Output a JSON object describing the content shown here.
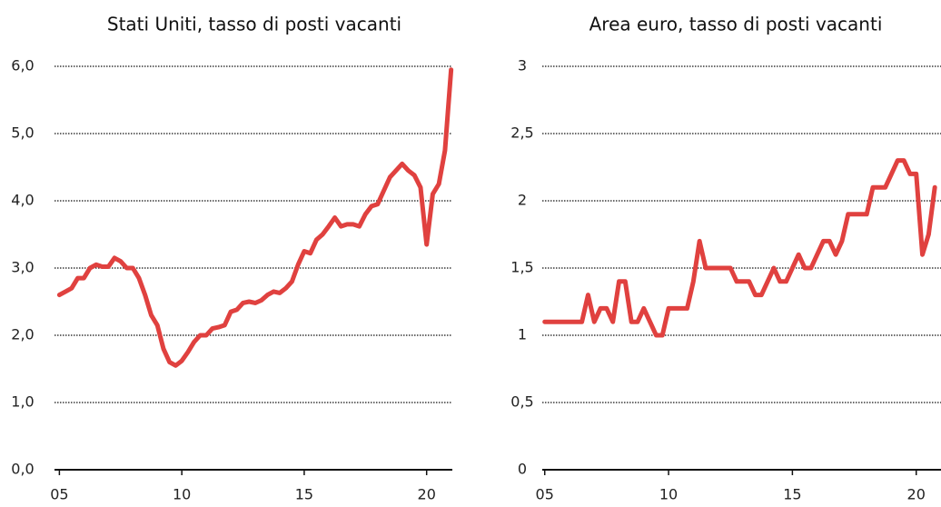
{
  "chart_data": [
    {
      "type": "line",
      "title": "Stati Uniti, tasso di posti vacanti",
      "x": [
        2005,
        2005.25,
        2005.5,
        2005.75,
        2006,
        2006.25,
        2006.5,
        2006.75,
        2007,
        2007.25,
        2007.5,
        2007.75,
        2008,
        2008.25,
        2008.5,
        2008.75,
        2009,
        2009.25,
        2009.5,
        2009.75,
        2010,
        2010.25,
        2010.5,
        2010.75,
        2011,
        2011.25,
        2011.5,
        2011.75,
        2012,
        2012.25,
        2012.5,
        2012.75,
        2013,
        2013.25,
        2013.5,
        2013.75,
        2014,
        2014.25,
        2014.5,
        2014.75,
        2015,
        2015.25,
        2015.5,
        2015.75,
        2016,
        2016.25,
        2016.5,
        2016.75,
        2017,
        2017.25,
        2017.5,
        2017.75,
        2018,
        2018.25,
        2018.5,
        2018.75,
        2019,
        2019.25,
        2019.5,
        2019.75,
        2020,
        2020.25,
        2020.5,
        2020.75,
        2021
      ],
      "series": [
        {
          "name": "Stati Uniti",
          "color": "#e0413f",
          "values": [
            2.6,
            2.65,
            2.7,
            2.85,
            2.85,
            3.0,
            3.05,
            3.02,
            3.02,
            3.15,
            3.1,
            3.0,
            3.0,
            2.85,
            2.6,
            2.3,
            2.15,
            1.8,
            1.6,
            1.55,
            1.62,
            1.75,
            1.9,
            2.0,
            2.0,
            2.1,
            2.12,
            2.15,
            2.35,
            2.38,
            2.48,
            2.5,
            2.48,
            2.52,
            2.6,
            2.65,
            2.63,
            2.7,
            2.8,
            3.05,
            3.25,
            3.22,
            3.42,
            3.5,
            3.62,
            3.75,
            3.62,
            3.65,
            3.65,
            3.62,
            3.8,
            3.92,
            3.95,
            4.15,
            4.35,
            4.45,
            4.55,
            4.45,
            4.38,
            4.2,
            3.35,
            4.1,
            4.25,
            4.75,
            5.95
          ]
        }
      ],
      "xlim": [
        2004.8,
        2021.05
      ],
      "xticks": [
        {
          "value": 2005,
          "label": "05"
        },
        {
          "value": 2010,
          "label": "10"
        },
        {
          "value": 2015,
          "label": "15"
        },
        {
          "value": 2020,
          "label": "20"
        }
      ],
      "ylim": [
        0,
        6
      ],
      "yticks": [
        {
          "value": 0,
          "label": "0,0"
        },
        {
          "value": 1,
          "label": "1,0"
        },
        {
          "value": 2,
          "label": "2,0"
        },
        {
          "value": 3,
          "label": "3,0"
        },
        {
          "value": 4,
          "label": "4,0"
        },
        {
          "value": 5,
          "label": "5,0"
        },
        {
          "value": 6,
          "label": "6,0"
        }
      ],
      "grid": true
    },
    {
      "type": "line",
      "title": "Area euro, tasso di posti vacanti",
      "x": [
        2005,
        2005.25,
        2005.5,
        2005.75,
        2006,
        2006.25,
        2006.5,
        2006.75,
        2007,
        2007.25,
        2007.5,
        2007.75,
        2008,
        2008.25,
        2008.5,
        2008.75,
        2009,
        2009.25,
        2009.5,
        2009.75,
        2010,
        2010.25,
        2010.5,
        2010.75,
        2011,
        2011.25,
        2011.5,
        2011.75,
        2012,
        2012.25,
        2012.5,
        2012.75,
        2013,
        2013.25,
        2013.5,
        2013.75,
        2014,
        2014.25,
        2014.5,
        2014.75,
        2015,
        2015.25,
        2015.5,
        2015.75,
        2016,
        2016.25,
        2016.5,
        2016.75,
        2017,
        2017.25,
        2017.5,
        2017.75,
        2018,
        2018.25,
        2018.5,
        2018.75,
        2019,
        2019.25,
        2019.5,
        2019.75,
        2020,
        2020.25,
        2020.5,
        2020.75
      ],
      "series": [
        {
          "name": "Area euro",
          "color": "#e0413f",
          "values": [
            1.1,
            1.1,
            1.1,
            1.1,
            1.1,
            1.1,
            1.1,
            1.3,
            1.1,
            1.2,
            1.2,
            1.1,
            1.4,
            1.4,
            1.1,
            1.1,
            1.2,
            1.1,
            1.0,
            1.0,
            1.2,
            1.2,
            1.2,
            1.2,
            1.4,
            1.7,
            1.5,
            1.5,
            1.5,
            1.5,
            1.5,
            1.4,
            1.4,
            1.4,
            1.3,
            1.3,
            1.4,
            1.5,
            1.4,
            1.4,
            1.5,
            1.6,
            1.5,
            1.5,
            1.6,
            1.7,
            1.7,
            1.6,
            1.7,
            1.9,
            1.9,
            1.9,
            1.9,
            2.1,
            2.1,
            2.1,
            2.2,
            2.3,
            2.3,
            2.2,
            2.2,
            1.6,
            1.75,
            2.1
          ]
        }
      ],
      "xlim": [
        2004.9,
        2021
      ],
      "xticks": [
        {
          "value": 2005,
          "label": "05"
        },
        {
          "value": 2010,
          "label": "10"
        },
        {
          "value": 2015,
          "label": "15"
        },
        {
          "value": 2020,
          "label": "20"
        }
      ],
      "ylim": [
        0,
        3
      ],
      "yticks": [
        0,
        {
          "value": 0.5,
          "label": "0,5"
        },
        1,
        {
          "value": 1.5,
          "label": "1,5"
        },
        2,
        {
          "value": 2.5,
          "label": "2,5"
        },
        3
      ],
      "grid": true
    }
  ]
}
